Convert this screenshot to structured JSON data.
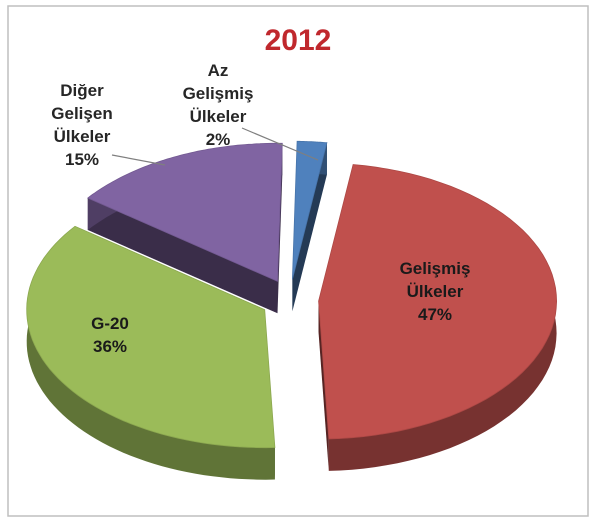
{
  "chart_data": {
    "type": "pie",
    "title": "2012",
    "categories": [
      "Az Gelişmiş Ülkeler",
      "Gelişmiş Ülkeler",
      "G-20",
      "Diğer Gelişen Ülkeler"
    ],
    "values": [
      2,
      47,
      36,
      15
    ],
    "value_labels": [
      "2%",
      "47%",
      "36%",
      "15%"
    ],
    "colors": [
      "#4f81bd",
      "#c0504d",
      "#9bbb59",
      "#8064a2"
    ],
    "exploded": true,
    "three_d": true
  }
}
